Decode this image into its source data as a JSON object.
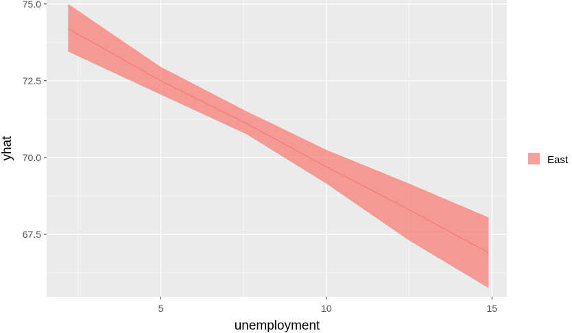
{
  "chart_data": {
    "type": "area",
    "xlabel": "unemployment",
    "ylabel": "yhat",
    "xlim": [
      1.55,
      15.45
    ],
    "ylim": [
      65.47,
      75.13
    ],
    "x_ticks": [
      5,
      10,
      15
    ],
    "x_tick_labels": [
      "5",
      "10",
      "15"
    ],
    "y_ticks": [
      67.5,
      70.0,
      72.5,
      75.0
    ],
    "y_tick_labels": [
      "67.5",
      "70.0",
      "72.5",
      "75.0"
    ],
    "grid": true,
    "legend": {
      "position": "right",
      "entries": [
        "East"
      ]
    },
    "series": [
      {
        "name": "East",
        "color": "#F8766D",
        "fill_opacity": 0.7,
        "x": [
          2.2,
          5.0,
          7.6,
          10.0,
          12.5,
          14.9
        ],
        "fit": [
          74.2,
          72.5,
          71.1,
          69.7,
          68.3,
          66.9
        ],
        "lower": [
          73.45,
          72.05,
          70.75,
          69.15,
          67.3,
          65.75
        ],
        "upper": [
          75.0,
          72.95,
          71.5,
          70.25,
          69.15,
          68.05
        ]
      }
    ]
  }
}
